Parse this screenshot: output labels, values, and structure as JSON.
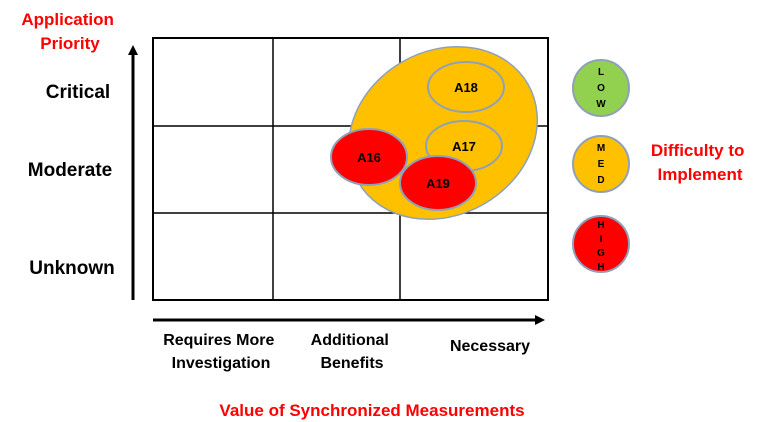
{
  "y_axis_title": [
    "Application",
    "Priority"
  ],
  "x_axis_title": "Value of Synchronized Measurements",
  "rows": [
    "Critical",
    "Moderate",
    "Unknown"
  ],
  "columns": [
    [
      "Requires More",
      "Investigation"
    ],
    [
      "Additional",
      "Benefits"
    ],
    [
      "Necessary"
    ]
  ],
  "legend_title": [
    "Difficulty to",
    "Implement"
  ],
  "legend": [
    {
      "letters": [
        "L",
        "O",
        "W"
      ],
      "color": "#92d050"
    },
    {
      "letters": [
        "M",
        "E",
        "D"
      ],
      "color": "#ffc000"
    },
    {
      "letters": [
        "H",
        "I",
        "G",
        "H"
      ],
      "color": "#ff0000"
    }
  ],
  "group_color": "#ffc000",
  "applications": [
    {
      "label": "A18",
      "color": "#ffc000"
    },
    {
      "label": "A17",
      "color": "#ffc000"
    },
    {
      "label": "A16",
      "color": "#ff0000"
    },
    {
      "label": "A19",
      "color": "#ff0000"
    }
  ]
}
